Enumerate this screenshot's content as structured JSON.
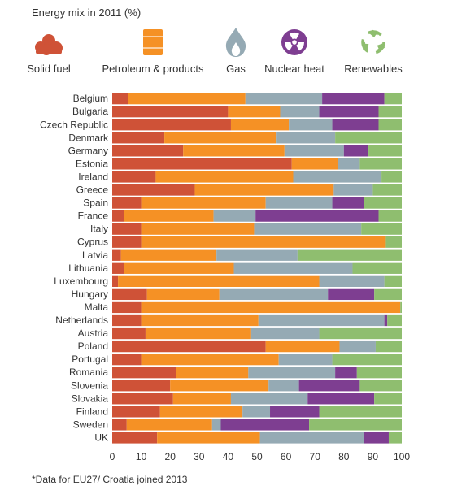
{
  "chart_data": {
    "type": "bar",
    "orientation": "horizontal",
    "stacked": true,
    "title": "Energy mix in 2011 (%)",
    "xlim": [
      0,
      100
    ],
    "xticks": [
      0,
      10,
      20,
      30,
      40,
      50,
      60,
      70,
      80,
      90,
      100
    ],
    "grid": false,
    "legend_position": "top",
    "categories": [
      "Belgium",
      "Bulgaria",
      "Czech Republic",
      "Denmark",
      "Germany",
      "Estonia",
      "Ireland",
      "Greece",
      "Spain",
      "France",
      "Italy",
      "Cyprus",
      "Latvia",
      "Lithuania",
      "Luxembourg",
      "Hungary",
      "Malta",
      "Netherlands",
      "Austria",
      "Poland",
      "Portugal",
      "Romania",
      "Slovenia",
      "Slovakia",
      "Finland",
      "Sweden",
      "UK"
    ],
    "series": [
      {
        "name": "Solid fuel",
        "color": "#cf5237",
        "icon": "coal-pile-icon",
        "values": [
          5.5,
          40,
          41,
          18,
          24.5,
          62,
          15,
          28.5,
          10,
          4,
          10,
          10,
          3,
          4,
          2,
          12,
          10,
          10,
          11.5,
          53,
          10,
          22,
          20,
          21,
          16.5,
          5,
          15.5
        ]
      },
      {
        "name": "Petroleum & products",
        "color": "#f59125",
        "icon": "oil-barrel-icon",
        "values": [
          40.5,
          18,
          20,
          38.5,
          35,
          16,
          47.5,
          48,
          43,
          31,
          39,
          84.5,
          33,
          38,
          69.5,
          25,
          89.5,
          40.5,
          36.5,
          25.5,
          47.5,
          25,
          34,
          20,
          28.5,
          29.5,
          35.5
        ]
      },
      {
        "name": "Gas",
        "color": "#95aab4",
        "icon": "gas-flame-icon",
        "values": [
          26.5,
          13.5,
          15,
          20.5,
          20.5,
          7.5,
          30.5,
          13.5,
          23,
          14.5,
          37,
          0,
          28,
          41,
          22.5,
          37.5,
          0,
          43.5,
          23.5,
          12.5,
          18.5,
          30,
          10.5,
          26.5,
          9.5,
          3,
          36
        ]
      },
      {
        "name": "Nuclear heat",
        "color": "#7e3e91",
        "icon": "radiation-icon",
        "values": [
          21.5,
          20.5,
          16,
          0,
          8.5,
          0,
          0,
          0,
          11,
          42.5,
          0,
          0,
          0,
          0,
          0,
          16,
          0,
          1,
          0,
          0,
          0,
          7.5,
          21,
          23,
          17,
          30.5,
          8.5
        ]
      },
      {
        "name": "Renewables",
        "color": "#8fbe6f",
        "icon": "recycle-icon",
        "values": [
          6,
          8,
          8,
          23,
          11.5,
          14.5,
          7,
          10,
          13,
          8,
          14,
          5.5,
          36,
          17,
          6,
          9.5,
          0.5,
          5,
          28.5,
          9,
          24,
          15.5,
          14.5,
          9.5,
          28.5,
          32,
          4.5
        ]
      }
    ],
    "footnote": "*Data for EU27/ Croatia joined 2013"
  }
}
